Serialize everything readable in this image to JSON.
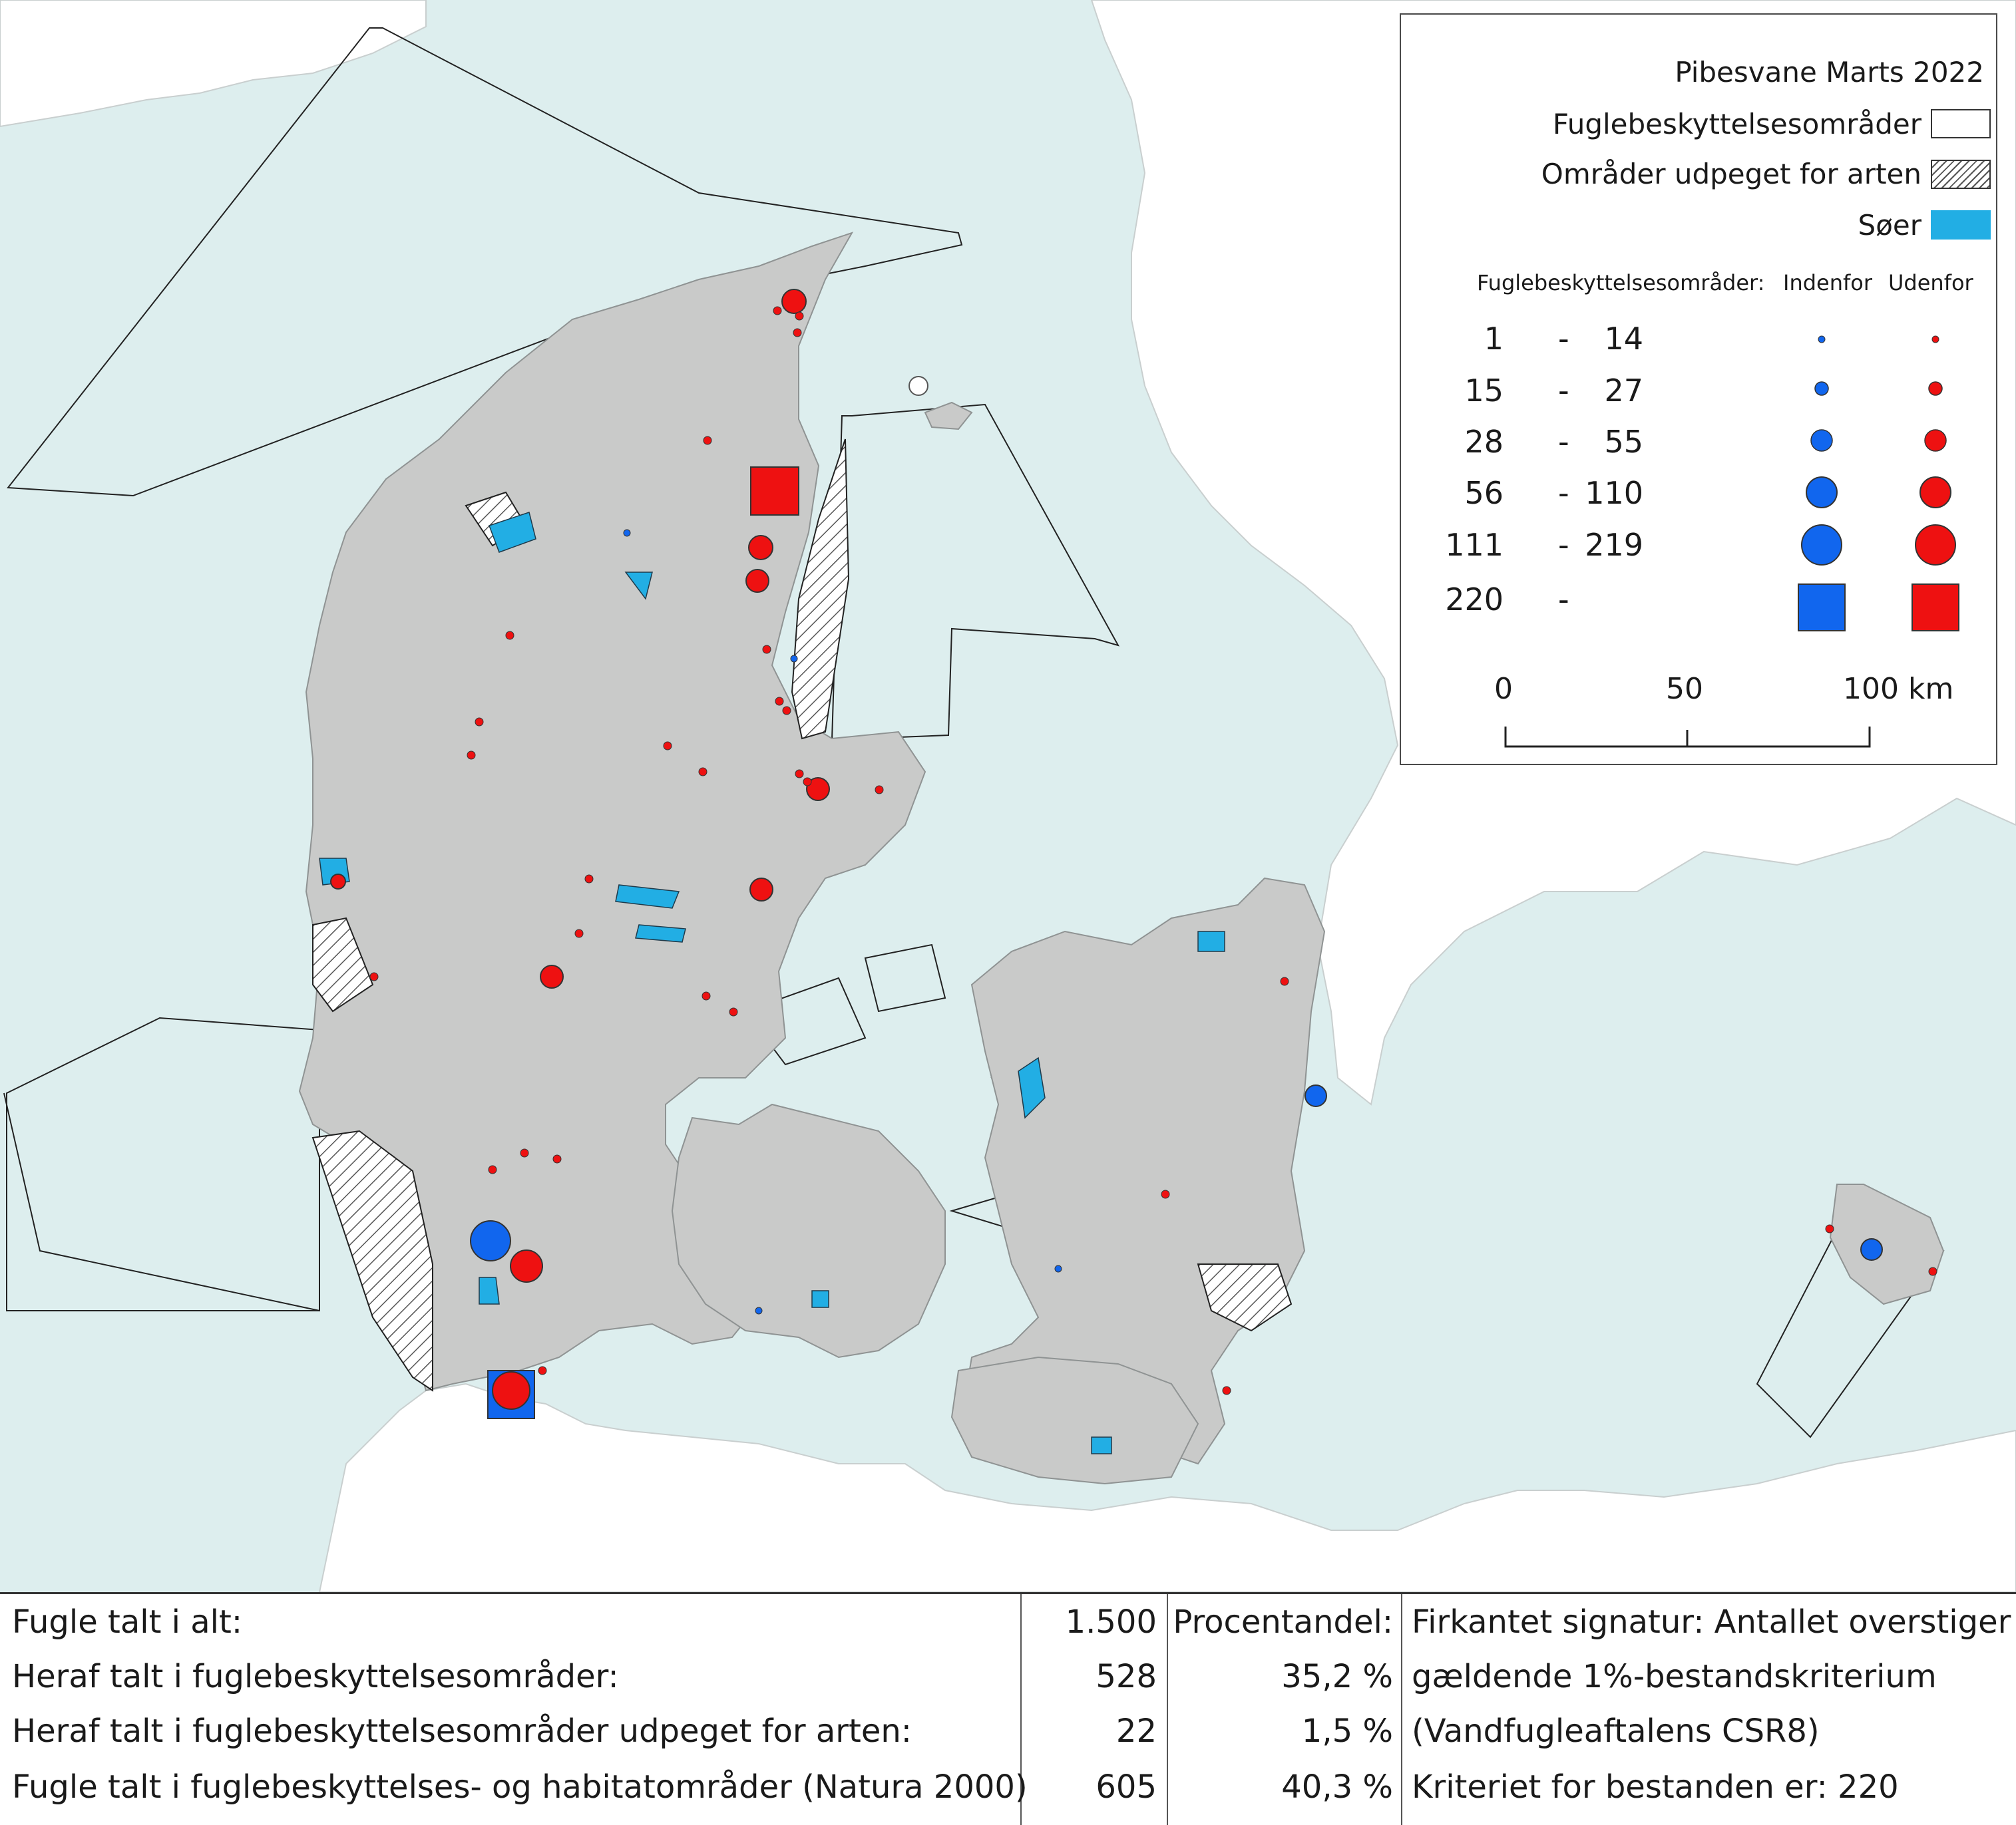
{
  "legend": {
    "title": "Pibesvane Marts 2022",
    "areas": [
      {
        "label": "Fuglebeskyttelsesområder",
        "swatch": "white-outline"
      },
      {
        "label": "Områder udpeget for arten",
        "swatch": "hatched"
      },
      {
        "label": "Søer",
        "swatch": "#22aee4"
      }
    ],
    "count_header": "Fuglebeskyttelsesområder:",
    "inside_label": "Indenfor",
    "outside_label": "Udenfor",
    "classes": [
      {
        "lo": "1",
        "dash": "-",
        "hi": "14"
      },
      {
        "lo": "15",
        "dash": "-",
        "hi": "27"
      },
      {
        "lo": "28",
        "dash": "-",
        "hi": "55"
      },
      {
        "lo": "56",
        "dash": "-",
        "hi": "110"
      },
      {
        "lo": "111",
        "dash": "-",
        "hi": "219"
      },
      {
        "lo": "220",
        "dash": "-",
        "hi": ""
      }
    ],
    "scale_labels": [
      "0",
      "50",
      "100 km"
    ]
  },
  "colors": {
    "sea": "#ddeeee",
    "land": "#c9cac9",
    "lakes": "#22aee4",
    "inside": "#1166ee",
    "outside": "#ee1111"
  },
  "stats": {
    "rows": [
      {
        "label": "Fugle talt i alt:",
        "value": "1.500",
        "pct": "Procentandel:"
      },
      {
        "label": "Heraf talt i fuglebeskyttelsesområder:",
        "value": "528",
        "pct": "35,2 %"
      },
      {
        "label": "Heraf talt i fuglebeskyttelsesområder udpeget for arten:",
        "value": "22",
        "pct": "1,5 %"
      },
      {
        "label": "Fugle talt i fuglebeskyttelses- og habitatområder (Natura 2000)",
        "value": "605",
        "pct": "40,3 %"
      }
    ],
    "notes": [
      "Firkantet signatur: Antallet overstiger",
      "gældende 1%-bestandskriterium",
      "(Vandfugleaftalens CSR8)",
      "Kriteriet for bestanden er: 220"
    ]
  }
}
